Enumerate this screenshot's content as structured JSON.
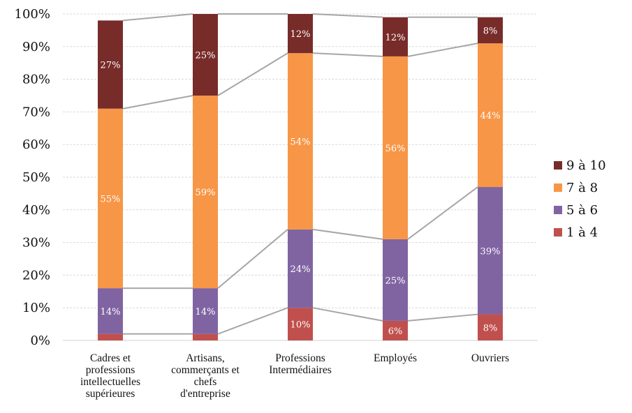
{
  "chart_data": {
    "type": "bar",
    "stacked": true,
    "title": "",
    "xlabel": "",
    "ylabel": "",
    "ylim": [
      0,
      100
    ],
    "yticks": [
      "0%",
      "10%",
      "20%",
      "30%",
      "40%",
      "50%",
      "60%",
      "70%",
      "80%",
      "90%",
      "100%"
    ],
    "grid": true,
    "legend_position": "right",
    "series_lines": true,
    "categories": [
      [
        "Cadres et",
        "professions",
        "intellectuelles",
        "supérieures"
      ],
      [
        "Artisans,",
        "commerçants et",
        "chefs",
        "d'entreprise"
      ],
      [
        "Professions",
        "Intermédiaires"
      ],
      [
        "Employés"
      ],
      [
        "Ouvriers"
      ]
    ],
    "series": [
      {
        "name": "1 à 4",
        "color": "#c0504d",
        "values": [
          2,
          2,
          10,
          6,
          8
        ],
        "labels": [
          "",
          "",
          "10%",
          "6%",
          "8%"
        ]
      },
      {
        "name": "5 à 6",
        "color": "#8064a2",
        "values": [
          14,
          14,
          24,
          25,
          39
        ],
        "labels": [
          "14%",
          "14%",
          "24%",
          "25%",
          "39%"
        ]
      },
      {
        "name": "7 à 8",
        "color": "#f79646",
        "values": [
          55,
          59,
          54,
          56,
          44
        ],
        "labels": [
          "55%",
          "59%",
          "54%",
          "56%",
          "44%"
        ]
      },
      {
        "name": "9 à 10",
        "color": "#772c2a",
        "values": [
          27,
          25,
          12,
          12,
          8
        ],
        "labels": [
          "27%",
          "25%",
          "12%",
          "12%",
          "8%"
        ]
      }
    ]
  }
}
